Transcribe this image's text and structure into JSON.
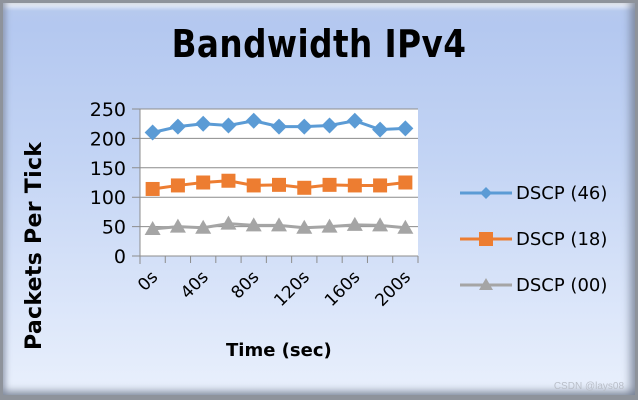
{
  "chart_data": {
    "type": "line",
    "title": "Bandwidth IPv4",
    "xlabel": "Time (sec)",
    "ylabel": "Packets Per Tick",
    "ylim": [
      0,
      250
    ],
    "yticks": [
      0,
      50,
      100,
      150,
      200,
      250
    ],
    "x": [
      0,
      20,
      40,
      60,
      80,
      100,
      120,
      140,
      160,
      180,
      200
    ],
    "xtick_labels": [
      "0s",
      "40s",
      "80s",
      "120s",
      "160s",
      "200s"
    ],
    "grid": true,
    "legend_position": "right",
    "series": [
      {
        "name": "DSCP (46)",
        "color": "#5b9bd5",
        "marker": "diamond",
        "values": [
          210,
          220,
          225,
          222,
          230,
          220,
          220,
          222,
          230,
          215,
          217
        ]
      },
      {
        "name": "DSCP (18)",
        "color": "#ed7d31",
        "marker": "square",
        "values": [
          114,
          120,
          125,
          128,
          120,
          121,
          116,
          121,
          120,
          120,
          125
        ]
      },
      {
        "name": "DSCP (00)",
        "color": "#a5a5a5",
        "marker": "triangle",
        "values": [
          46,
          50,
          48,
          55,
          52,
          52,
          48,
          50,
          53,
          52,
          48
        ]
      }
    ]
  },
  "watermark": "CSDN @lays08"
}
